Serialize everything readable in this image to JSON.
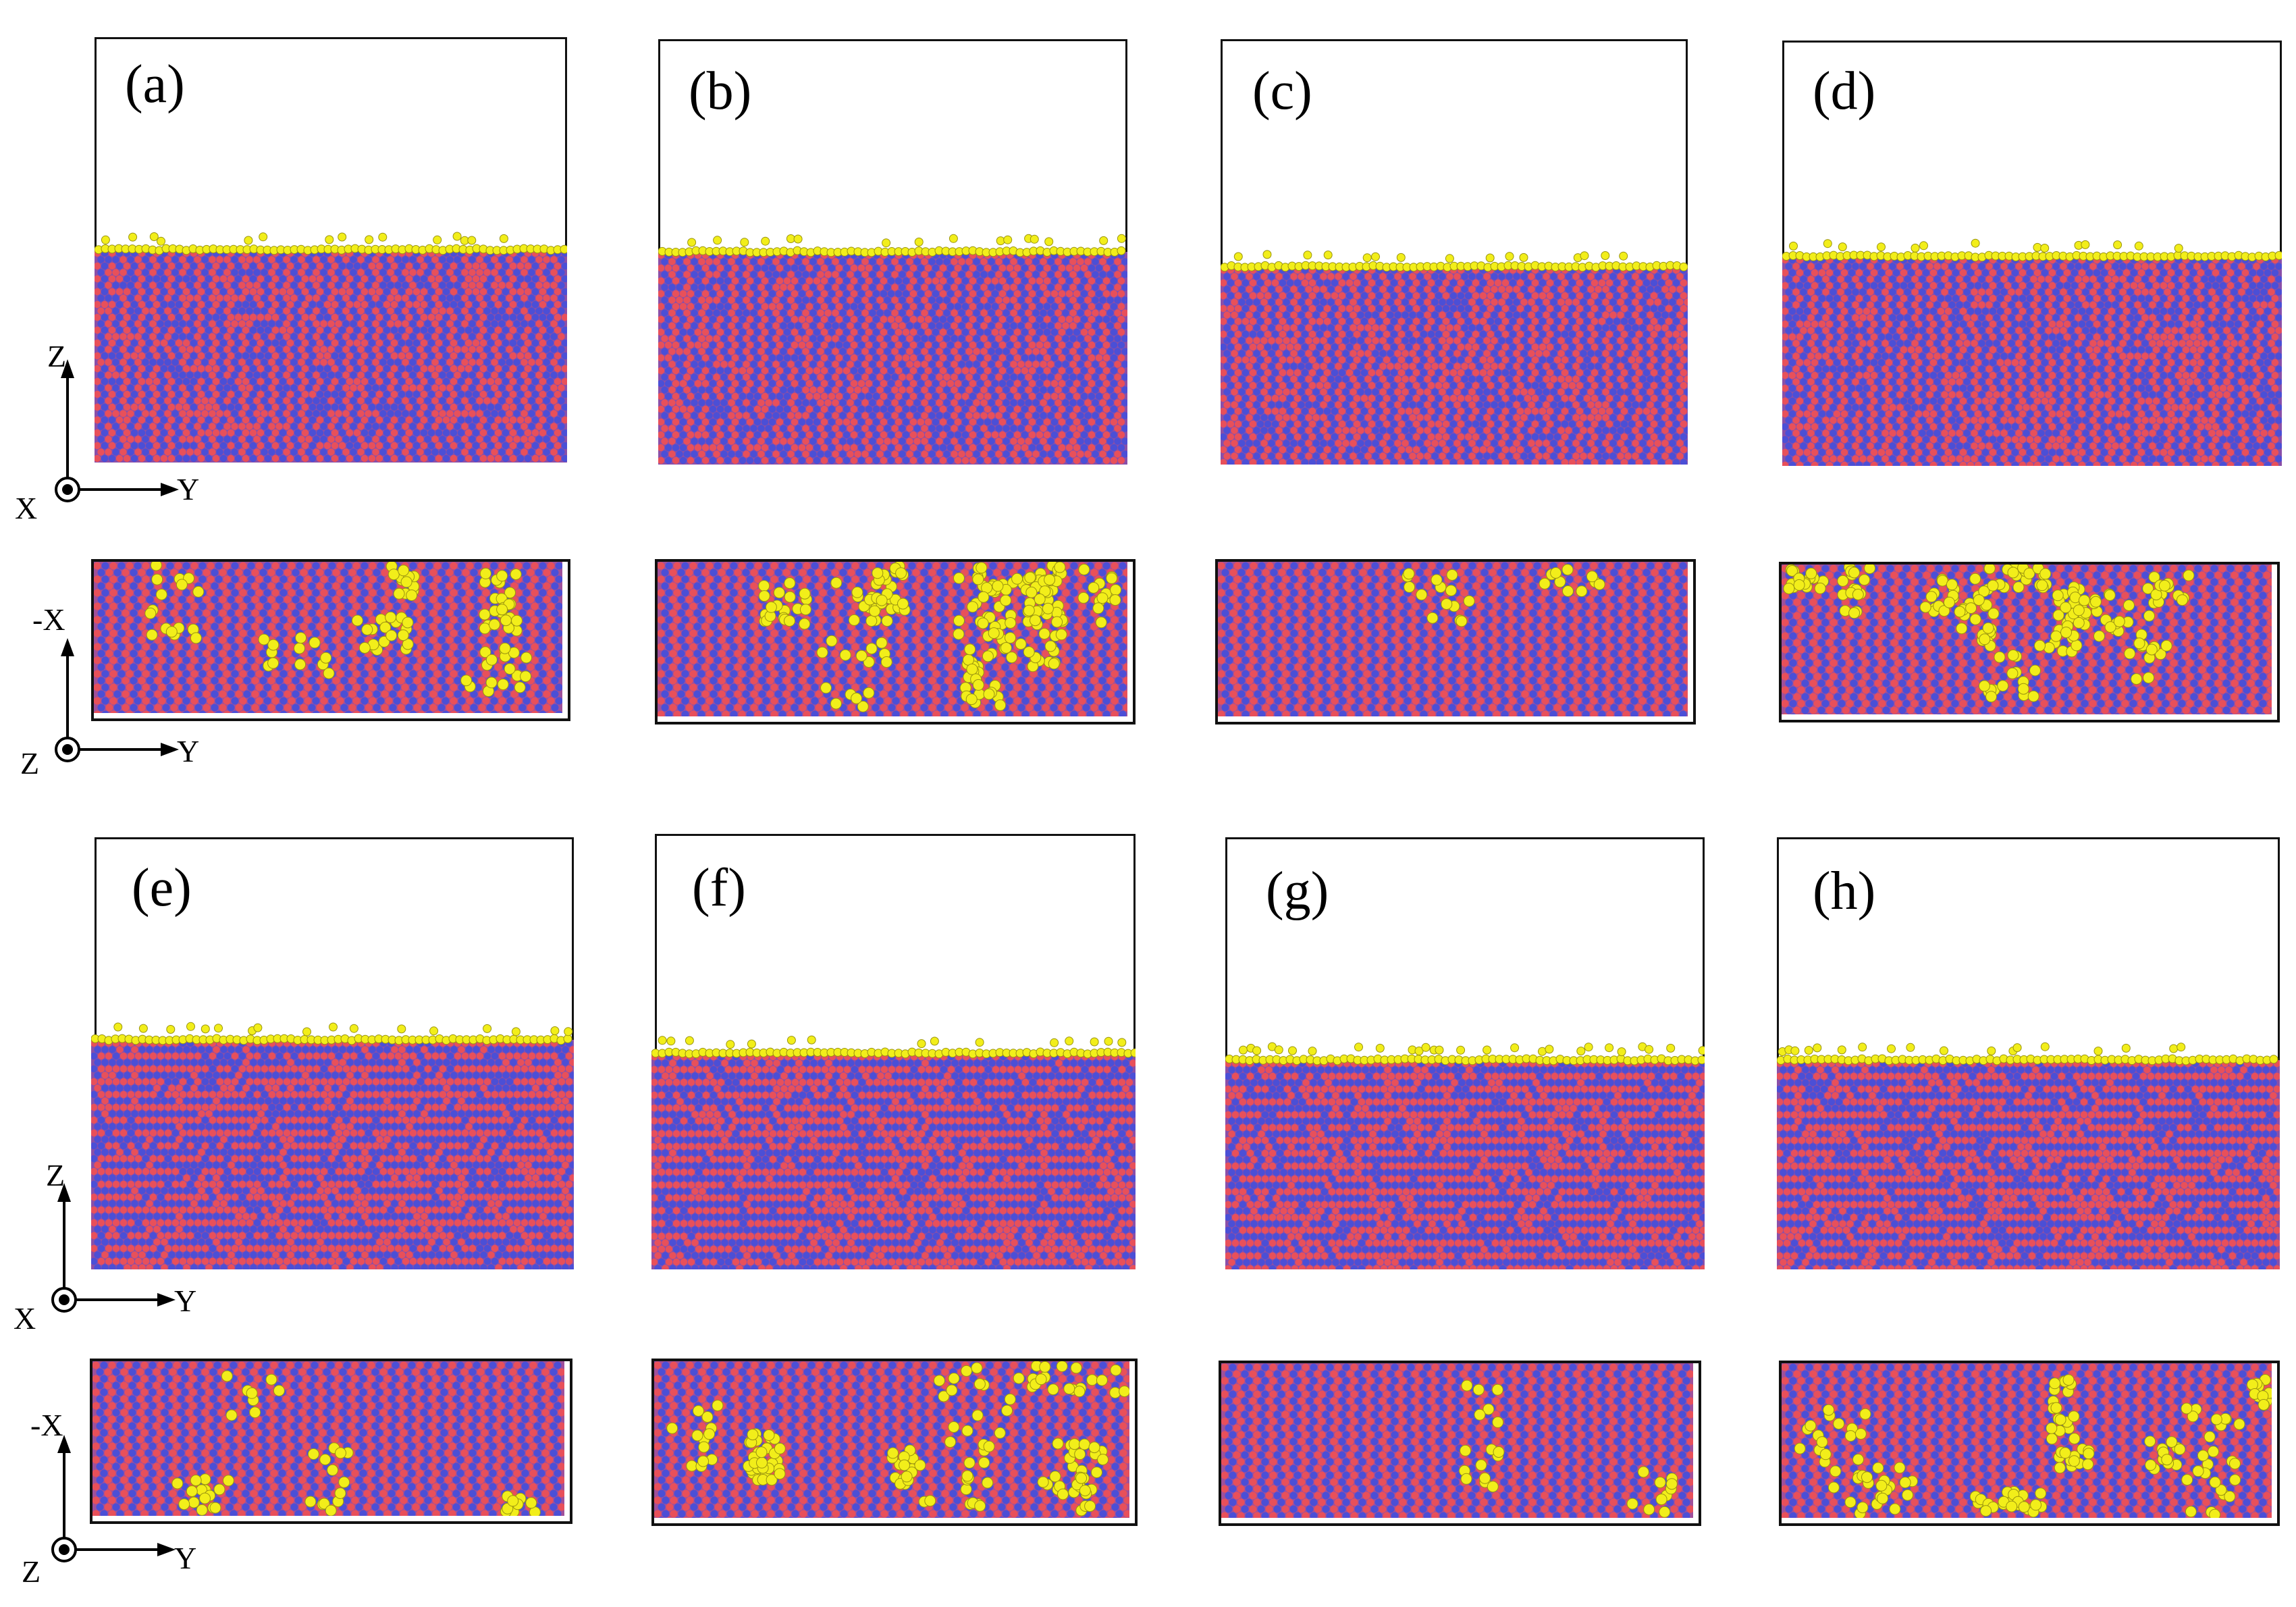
{
  "panels": [
    {
      "label": "(a)",
      "interface": "mixed"
    },
    {
      "label": "(b)",
      "interface": "mixed"
    },
    {
      "label": "(c)",
      "interface": "mixed"
    },
    {
      "label": "(d)",
      "interface": "mixed"
    },
    {
      "label": "(e)",
      "interface": "ordered"
    },
    {
      "label": "(f)",
      "interface": "ordered"
    },
    {
      "label": "(g)",
      "interface": "ordered"
    },
    {
      "label": "(h)",
      "interface": "ordered"
    }
  ],
  "axes": {
    "side_view": {
      "vertical": "Z",
      "horizontal": "Y",
      "out_of_plane": "X"
    },
    "top_view": {
      "vertical": "-X",
      "horizontal": "Y",
      "out_of_plane": "Z"
    }
  },
  "colors": {
    "adsorbate": "#f2ee1a",
    "species_a": "#e8505a",
    "species_b": "#4b4fd6",
    "background": "#ffffff",
    "frame": "#111111"
  }
}
